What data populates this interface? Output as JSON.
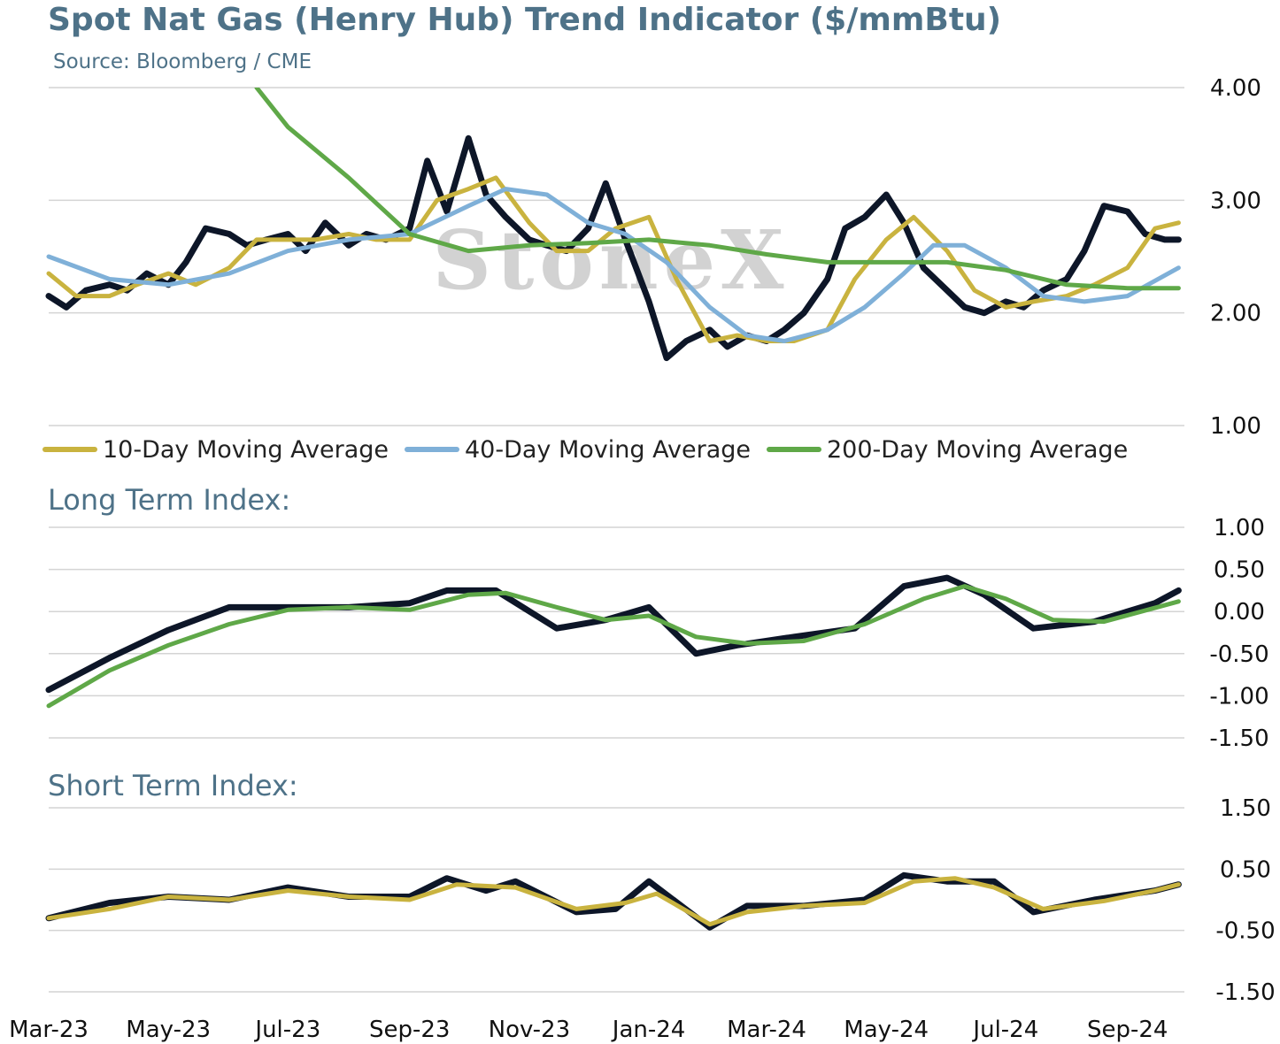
{
  "title": "Spot Nat Gas (Henry Hub) Trend Indicator ($/mmBtu)",
  "subtitle": "Source: Bloomberg / CME",
  "watermark": "StoneX",
  "colors": {
    "price": "#0d1628",
    "ma10": "#c9b33f",
    "ma40": "#7fb0d8",
    "ma200": "#5fa848",
    "text": "#4e7288",
    "grid": "#d4d4d4"
  },
  "legend": [
    {
      "label": "10-Day Moving Average",
      "color_key": "ma10"
    },
    {
      "label": "40-Day Moving Average",
      "color_key": "ma40"
    },
    {
      "label": "200-Day Moving Average",
      "color_key": "ma200"
    }
  ],
  "panels": {
    "long_term": {
      "title": "Long Term Index:"
    },
    "short_term": {
      "title": "Short Term Index:"
    }
  },
  "chart_data": [
    {
      "type": "line",
      "title": "Spot Nat Gas (Henry Hub) Trend Indicator ($/mmBtu)",
      "ylim": [
        1.0,
        4.0
      ],
      "yticks": [
        "1.00",
        "2.00",
        "3.00",
        "4.00"
      ],
      "xlim": [
        "2023-03-01",
        "2024-09-30"
      ],
      "xticks": [
        "Mar-23",
        "May-23",
        "Jul-23",
        "Sep-23",
        "Nov-23",
        "Jan-24",
        "Mar-24",
        "May-24",
        "Jul-24",
        "Sep-24"
      ],
      "legend_position": "bottom",
      "grid": true,
      "series": [
        {
          "name": "",
          "color_key": "price",
          "x": [
            "2023-03-01",
            "2023-03-10",
            "2023-03-20",
            "2023-04-01",
            "2023-04-10",
            "2023-04-20",
            "2023-05-01",
            "2023-05-10",
            "2023-05-20",
            "2023-06-01",
            "2023-06-10",
            "2023-06-20",
            "2023-07-01",
            "2023-07-10",
            "2023-07-20",
            "2023-08-01",
            "2023-08-10",
            "2023-08-20",
            "2023-09-01",
            "2023-09-10",
            "2023-09-20",
            "2023-10-01",
            "2023-10-10",
            "2023-10-20",
            "2023-11-01",
            "2023-11-10",
            "2023-11-20",
            "2023-12-01",
            "2023-12-10",
            "2023-12-20",
            "2024-01-01",
            "2024-01-10",
            "2024-01-20",
            "2024-02-01",
            "2024-02-10",
            "2024-02-20",
            "2024-03-01",
            "2024-03-10",
            "2024-03-20",
            "2024-04-01",
            "2024-04-10",
            "2024-04-20",
            "2024-05-01",
            "2024-05-10",
            "2024-05-20",
            "2024-06-01",
            "2024-06-10",
            "2024-06-20",
            "2024-07-01",
            "2024-07-10",
            "2024-07-20",
            "2024-08-01",
            "2024-08-10",
            "2024-08-20",
            "2024-09-01",
            "2024-09-10",
            "2024-09-20",
            "2024-09-27"
          ],
          "values": [
            2.15,
            2.05,
            2.2,
            2.25,
            2.2,
            2.35,
            2.25,
            2.45,
            2.75,
            2.7,
            2.6,
            2.65,
            2.7,
            2.55,
            2.8,
            2.6,
            2.7,
            2.65,
            2.75,
            3.35,
            2.9,
            3.55,
            3.05,
            2.85,
            2.65,
            2.6,
            2.55,
            2.75,
            3.15,
            2.65,
            2.1,
            1.6,
            1.75,
            1.85,
            1.7,
            1.8,
            1.75,
            1.85,
            2.0,
            2.3,
            2.75,
            2.85,
            3.05,
            2.8,
            2.4,
            2.2,
            2.05,
            2.0,
            2.1,
            2.05,
            2.2,
            2.3,
            2.55,
            2.95,
            2.9,
            2.7,
            2.65,
            2.65
          ]
        },
        {
          "name": "10-Day Moving Average",
          "color_key": "ma10",
          "x": [
            "2023-03-01",
            "2023-03-15",
            "2023-04-01",
            "2023-04-15",
            "2023-05-01",
            "2023-05-15",
            "2023-06-01",
            "2023-06-15",
            "2023-07-01",
            "2023-07-15",
            "2023-08-01",
            "2023-08-15",
            "2023-09-01",
            "2023-09-15",
            "2023-10-01",
            "2023-10-15",
            "2023-11-01",
            "2023-11-15",
            "2023-12-01",
            "2023-12-15",
            "2024-01-01",
            "2024-01-15",
            "2024-02-01",
            "2024-02-15",
            "2024-03-01",
            "2024-03-15",
            "2024-04-01",
            "2024-04-15",
            "2024-05-01",
            "2024-05-15",
            "2024-06-01",
            "2024-06-15",
            "2024-07-01",
            "2024-07-15",
            "2024-08-01",
            "2024-08-15",
            "2024-09-01",
            "2024-09-15",
            "2024-09-27"
          ],
          "values": [
            2.35,
            2.15,
            2.15,
            2.25,
            2.35,
            2.25,
            2.4,
            2.65,
            2.65,
            2.65,
            2.7,
            2.65,
            2.65,
            3.0,
            3.1,
            3.2,
            2.8,
            2.55,
            2.55,
            2.75,
            2.85,
            2.3,
            1.75,
            1.8,
            1.75,
            1.75,
            1.85,
            2.3,
            2.65,
            2.85,
            2.55,
            2.2,
            2.05,
            2.1,
            2.15,
            2.25,
            2.4,
            2.75,
            2.8
          ]
        },
        {
          "name": "40-Day Moving Average",
          "color_key": "ma40",
          "x": [
            "2023-03-01",
            "2023-04-01",
            "2023-05-01",
            "2023-06-01",
            "2023-07-01",
            "2023-08-01",
            "2023-09-01",
            "2023-10-01",
            "2023-10-20",
            "2023-11-10",
            "2023-12-01",
            "2023-12-20",
            "2024-01-10",
            "2024-02-01",
            "2024-02-20",
            "2024-03-10",
            "2024-04-01",
            "2024-04-20",
            "2024-05-10",
            "2024-05-25",
            "2024-06-10",
            "2024-07-01",
            "2024-07-20",
            "2024-08-10",
            "2024-09-01",
            "2024-09-27"
          ],
          "values": [
            2.5,
            2.3,
            2.25,
            2.35,
            2.55,
            2.65,
            2.7,
            2.95,
            3.1,
            3.05,
            2.8,
            2.7,
            2.45,
            2.05,
            1.8,
            1.75,
            1.85,
            2.05,
            2.35,
            2.6,
            2.6,
            2.4,
            2.15,
            2.1,
            2.15,
            2.4
          ]
        },
        {
          "name": "200-Day Moving Average",
          "color_key": "ma200",
          "x": [
            "2023-06-15",
            "2023-07-01",
            "2023-08-01",
            "2023-09-01",
            "2023-10-01",
            "2023-11-01",
            "2023-12-01",
            "2024-01-01",
            "2024-02-01",
            "2024-03-01",
            "2024-04-01",
            "2024-05-01",
            "2024-06-01",
            "2024-07-01",
            "2024-08-01",
            "2024-09-01",
            "2024-09-27"
          ],
          "values": [
            4.0,
            3.65,
            3.2,
            2.7,
            2.55,
            2.6,
            2.62,
            2.65,
            2.6,
            2.52,
            2.45,
            2.45,
            2.45,
            2.38,
            2.25,
            2.22,
            2.22
          ]
        }
      ]
    },
    {
      "type": "line",
      "title": "Long Term Index:",
      "ylim": [
        -1.5,
        1.0
      ],
      "yticks": [
        "-1.50",
        "-1.00",
        "-0.50",
        "0.00",
        "0.50",
        "1.00"
      ],
      "grid": true,
      "series": [
        {
          "name": "",
          "color_key": "price",
          "x": [
            "2023-03-01",
            "2023-04-01",
            "2023-05-01",
            "2023-06-01",
            "2023-07-01",
            "2023-08-01",
            "2023-09-01",
            "2023-09-20",
            "2023-10-15",
            "2023-11-15",
            "2023-12-10",
            "2024-01-01",
            "2024-01-25",
            "2024-02-15",
            "2024-03-15",
            "2024-04-15",
            "2024-05-10",
            "2024-06-01",
            "2024-06-20",
            "2024-07-15",
            "2024-08-15",
            "2024-09-15",
            "2024-09-27"
          ],
          "values": [
            -0.93,
            -0.55,
            -0.22,
            0.05,
            0.05,
            0.05,
            0.1,
            0.25,
            0.25,
            -0.2,
            -0.1,
            0.05,
            -0.5,
            -0.4,
            -0.3,
            -0.2,
            0.3,
            0.4,
            0.2,
            -0.2,
            -0.12,
            0.1,
            0.25
          ]
        },
        {
          "name": "",
          "color_key": "ma200",
          "x": [
            "2023-03-01",
            "2023-04-01",
            "2023-05-01",
            "2023-06-01",
            "2023-07-01",
            "2023-08-01",
            "2023-09-01",
            "2023-10-01",
            "2023-10-20",
            "2023-11-15",
            "2023-12-10",
            "2024-01-01",
            "2024-01-25",
            "2024-02-20",
            "2024-03-20",
            "2024-04-20",
            "2024-05-20",
            "2024-06-10",
            "2024-07-01",
            "2024-07-25",
            "2024-08-20",
            "2024-09-27"
          ],
          "values": [
            -1.12,
            -0.7,
            -0.4,
            -0.15,
            0.02,
            0.05,
            0.02,
            0.2,
            0.22,
            0.05,
            -0.1,
            -0.05,
            -0.3,
            -0.38,
            -0.35,
            -0.15,
            0.15,
            0.3,
            0.15,
            -0.1,
            -0.12,
            0.12
          ]
        }
      ]
    },
    {
      "type": "line",
      "title": "Short Term Index:",
      "ylim": [
        -1.5,
        1.5
      ],
      "yticks": [
        "-1.50",
        "-0.50",
        "0.50",
        "1.50"
      ],
      "grid": true,
      "series": [
        {
          "name": "",
          "color_key": "price",
          "x": [
            "2023-03-01",
            "2023-04-01",
            "2023-05-01",
            "2023-06-01",
            "2023-07-01",
            "2023-08-01",
            "2023-09-01",
            "2023-09-20",
            "2023-10-10",
            "2023-10-25",
            "2023-11-25",
            "2023-12-15",
            "2024-01-01",
            "2024-02-01",
            "2024-02-20",
            "2024-03-20",
            "2024-04-20",
            "2024-05-10",
            "2024-06-01",
            "2024-06-25",
            "2024-07-15",
            "2024-08-15",
            "2024-09-15",
            "2024-09-27"
          ],
          "values": [
            -0.3,
            -0.05,
            0.05,
            0.0,
            0.2,
            0.05,
            0.05,
            0.35,
            0.15,
            0.3,
            -0.2,
            -0.15,
            0.3,
            -0.45,
            -0.1,
            -0.1,
            0.0,
            0.4,
            0.3,
            0.3,
            -0.2,
            0.0,
            0.15,
            0.25
          ]
        },
        {
          "name": "",
          "color_key": "ma10",
          "x": [
            "2023-03-01",
            "2023-04-01",
            "2023-05-01",
            "2023-06-01",
            "2023-07-01",
            "2023-08-01",
            "2023-09-01",
            "2023-09-25",
            "2023-10-25",
            "2023-11-25",
            "2023-12-20",
            "2024-01-05",
            "2024-02-01",
            "2024-02-20",
            "2024-03-20",
            "2024-04-20",
            "2024-05-15",
            "2024-06-05",
            "2024-06-25",
            "2024-07-20",
            "2024-08-20",
            "2024-09-15",
            "2024-09-27"
          ],
          "values": [
            -0.3,
            -0.15,
            0.05,
            0.0,
            0.15,
            0.05,
            0.0,
            0.25,
            0.2,
            -0.15,
            -0.05,
            0.1,
            -0.4,
            -0.2,
            -0.1,
            -0.05,
            0.3,
            0.35,
            0.2,
            -0.15,
            -0.02,
            0.15,
            0.25
          ]
        }
      ]
    }
  ]
}
